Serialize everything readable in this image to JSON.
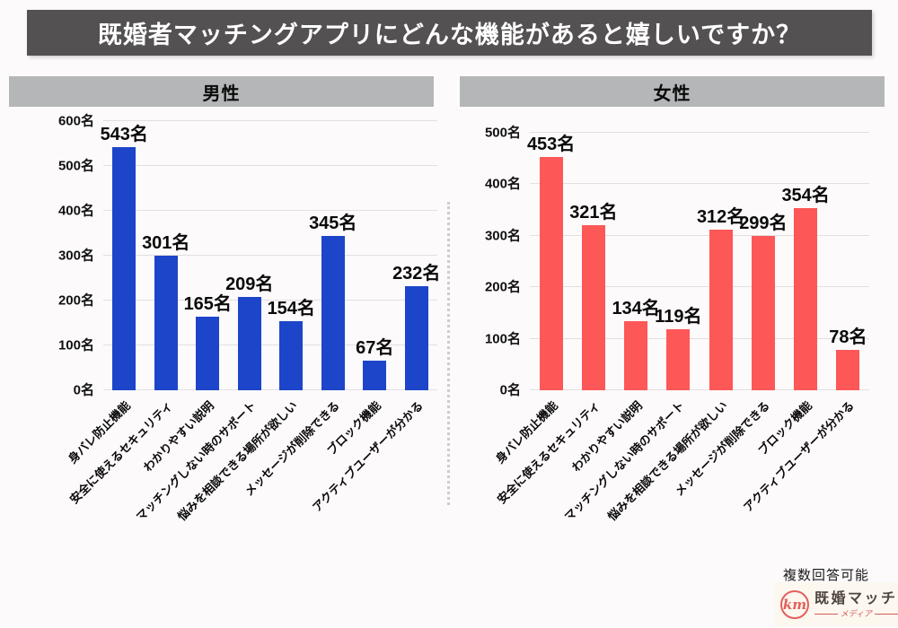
{
  "title": "既婚者マッチングアプリにどんな機能があると嬉しいですか？",
  "footer": {
    "note": "複数回答可能"
  },
  "logo": {
    "mark": "km",
    "name": "既婚マッチ",
    "subtitle": "メディア"
  },
  "colors": {
    "title_bg": "#545152",
    "section_header_bg": "#b4b6b8",
    "male_bar": "#1d45c9",
    "female_bar": "#fd5757",
    "gridline": "#e2dfe0"
  },
  "chart_data": [
    {
      "type": "bar",
      "group": "male",
      "title": "男性",
      "unit": "名",
      "categories": [
        "身バレ防止機能",
        "安全に使えるセキュリティ",
        "わかりやすい説明",
        "マッチングしない時のサポート",
        "悩みを相談できる場所が欲しい",
        "メッセージが削除できる",
        "ブロック機能",
        "アクティブユーザーが分かる"
      ],
      "values": [
        543,
        301,
        165,
        209,
        154,
        345,
        67,
        232
      ],
      "ylim": [
        0,
        600
      ],
      "ytick_step": 100,
      "bar_color": "#1d45c9",
      "grid": true,
      "value_labels": true,
      "legend": "none"
    },
    {
      "type": "bar",
      "group": "female",
      "title": "女性",
      "unit": "名",
      "categories": [
        "身バレ防止機能",
        "安全に使えるセキュリティ",
        "わかりやすい説明",
        "マッチングしない時のサポート",
        "悩みを相談できる場所が欲しい",
        "メッセージが削除できる",
        "ブロック機能",
        "アクティブユーザーが分かる"
      ],
      "values": [
        453,
        321,
        134,
        119,
        312,
        299,
        354,
        78
      ],
      "ylim": [
        0,
        500
      ],
      "ytick_step": 100,
      "bar_color": "#fd5757",
      "grid": true,
      "value_labels": true,
      "legend": "none"
    }
  ]
}
